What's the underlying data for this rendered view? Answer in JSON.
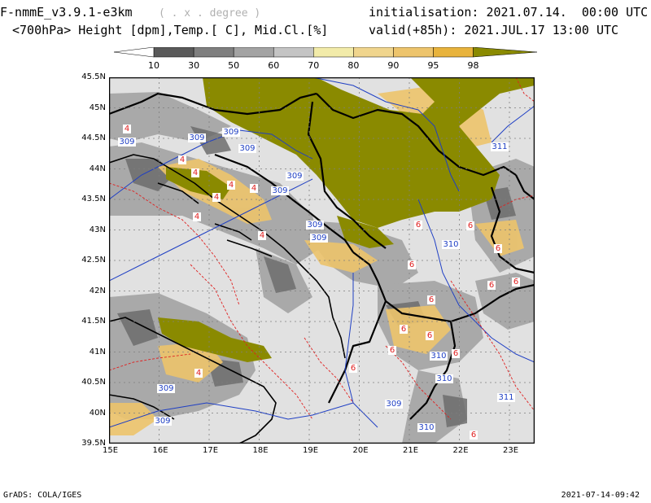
{
  "header": {
    "model": "F-nmmE_v3.9.1-e3km",
    "units_note": "( . x . degree )",
    "field": "<700hPa> Height [dpm],Temp.[ C], Mid.Cl.[%]",
    "init": "initialisation: 2021.07.14.  00:00 UTC",
    "valid": "valid(+85h): 2021.JUL.17 13:00 UTC"
  },
  "colorbar": {
    "labels": [
      "10",
      "30",
      "50",
      "60",
      "70",
      "80",
      "90",
      "95",
      "98"
    ],
    "colors": [
      "#ffffff",
      "#5a5a5a",
      "#7f7f7f",
      "#a3a3a3",
      "#c4c4c4",
      "#f2eba9",
      "#f0d58d",
      "#edc46c",
      "#e8b33c",
      "#8a8a00"
    ]
  },
  "map": {
    "lat_labels": [
      "45.5N",
      "45N",
      "44.5N",
      "44N",
      "43.5N",
      "43N",
      "42.5N",
      "42N",
      "41.5N",
      "41N",
      "40.5N",
      "40N",
      "39.5N"
    ],
    "lon_labels": [
      "15E",
      "16E",
      "17E",
      "18E",
      "19E",
      "20E",
      "21E",
      "22E",
      "23E"
    ],
    "background": "#e1e1e1",
    "cloud_98": "#8a8a00",
    "height_contour_color": "#1f3fc4",
    "temp_contour_color": "#e02020",
    "height_labels": [
      "309",
      "309",
      "309",
      "309",
      "309",
      "309",
      "309",
      "309",
      "309",
      "309",
      "310",
      "310",
      "310",
      "310",
      "311",
      "311",
      "309"
    ],
    "temp_labels": [
      "4",
      "4",
      "4",
      "4",
      "4",
      "4",
      "4",
      "4",
      "4",
      "6",
      "6",
      "6",
      "6",
      "6",
      "6",
      "6",
      "6",
      "6",
      "6",
      "6",
      "6",
      "6"
    ]
  },
  "footer": {
    "left": "GrADS: COLA/IGES",
    "right": "2021-07-14-09:42"
  }
}
